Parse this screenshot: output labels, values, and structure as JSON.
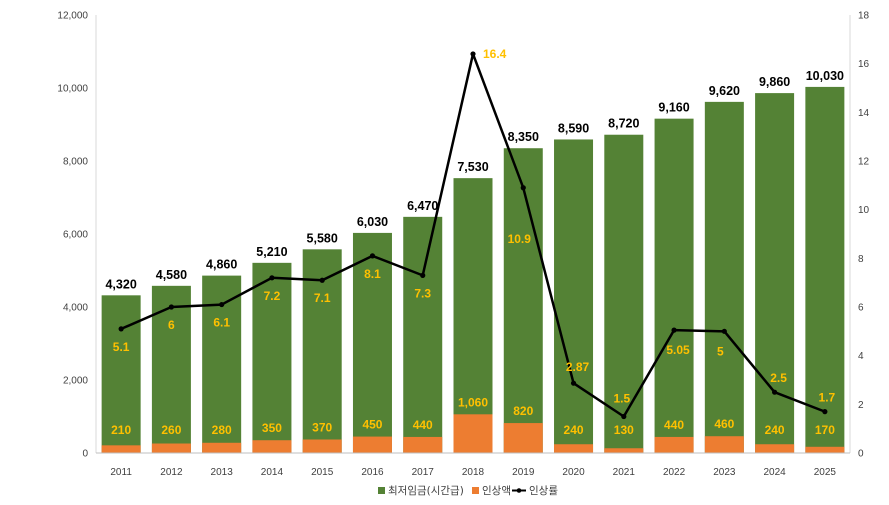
{
  "chart_data": {
    "type": "bar",
    "categories": [
      "2011",
      "2012",
      "2013",
      "2014",
      "2015",
      "2016",
      "2017",
      "2018",
      "2019",
      "2020",
      "2021",
      "2022",
      "2023",
      "2024",
      "2025"
    ],
    "series": [
      {
        "name": "최저임금(시간급)",
        "kind": "bar",
        "axis": "left",
        "color": "#548235",
        "values": [
          4320,
          4580,
          4860,
          5210,
          5580,
          6030,
          6470,
          7530,
          8350,
          8590,
          8720,
          9160,
          9620,
          9860,
          10030
        ],
        "labels": [
          "4,320",
          "4,580",
          "4,860",
          "5,210",
          "5,580",
          "6,030",
          "6,470",
          "7,530",
          "8,350",
          "8,590",
          "8,720",
          "9,160",
          "9,620",
          "9,860",
          "10,030"
        ]
      },
      {
        "name": "인상액",
        "kind": "bar-overlay",
        "axis": "left",
        "color": "#ed7d31",
        "values": [
          210,
          260,
          280,
          350,
          370,
          450,
          440,
          1060,
          820,
          240,
          130,
          440,
          460,
          240,
          170
        ],
        "labels": [
          "210",
          "260",
          "280",
          "350",
          "370",
          "450",
          "440",
          "1,060",
          "820",
          "240",
          "130",
          "440",
          "460",
          "240",
          "170"
        ]
      },
      {
        "name": "인상률",
        "kind": "line",
        "axis": "right",
        "color": "#000000",
        "values": [
          5.1,
          6,
          6.1,
          7.2,
          7.1,
          8.1,
          7.3,
          16.4,
          10.9,
          2.87,
          1.5,
          5.05,
          5,
          2.5,
          1.7
        ],
        "labels": [
          "5.1",
          "6",
          "6.1",
          "7.2",
          "7.1",
          "8.1",
          "7.3",
          "16.4",
          "10.9",
          "2.87",
          "1.5",
          "5.05",
          "5",
          "2.5",
          "1.7"
        ]
      }
    ],
    "y_left": {
      "min": 0,
      "max": 12000,
      "ticks": [
        "0",
        "2,000",
        "4,000",
        "6,000",
        "8,000",
        "10,000",
        "12,000"
      ]
    },
    "y_right": {
      "min": 0,
      "max": 18,
      "ticks": [
        "0",
        "2",
        "4",
        "6",
        "8",
        "10",
        "12",
        "14",
        "16",
        "18"
      ]
    },
    "grid": false,
    "legend": "bottom-right",
    "title": "",
    "xlabel": "",
    "ylabel": ""
  }
}
